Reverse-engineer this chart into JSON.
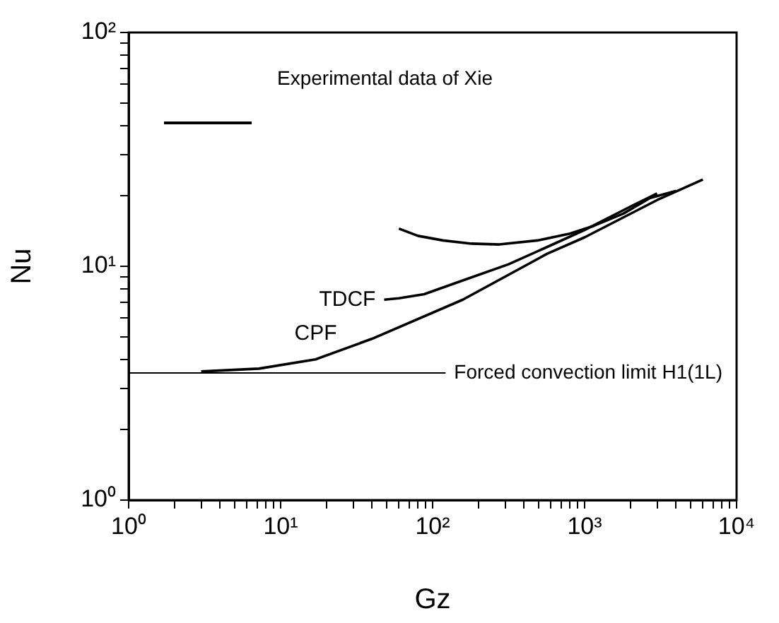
{
  "chart_data": {
    "type": "line",
    "xlabel": "Gz",
    "ylabel": "Nu",
    "log": "xy",
    "annotations": [
      "Experimental data of Xie"
    ],
    "grid": false,
    "marker": "none",
    "line_style": "solid",
    "xlim": [
      1,
      10000
    ],
    "ylim": [
      1,
      100
    ],
    "xticks": [
      {
        "value": 1,
        "label": "10⁰"
      },
      {
        "value": 2,
        "label": null
      },
      {
        "value": 3,
        "label": null
      },
      {
        "value": 4,
        "label": null
      },
      {
        "value": 5,
        "label": null
      },
      {
        "value": 6,
        "label": null
      },
      {
        "value": 7,
        "label": null
      },
      {
        "value": 8,
        "label": null
      },
      {
        "value": 9,
        "label": null
      },
      {
        "value": 10,
        "label": "10¹"
      },
      {
        "value": 20,
        "label": null
      },
      {
        "value": 30,
        "label": null
      },
      {
        "value": 40,
        "label": null
      },
      {
        "value": 50,
        "label": null
      },
      {
        "value": 60,
        "label": null
      },
      {
        "value": 70,
        "label": null
      },
      {
        "value": 80,
        "label": null
      },
      {
        "value": 90,
        "label": null
      },
      {
        "value": 100,
        "label": "10²"
      },
      {
        "value": 200,
        "label": null
      },
      {
        "value": 300,
        "label": null
      },
      {
        "value": 400,
        "label": null
      },
      {
        "value": 500,
        "label": null
      },
      {
        "value": 600,
        "label": null
      },
      {
        "value": 700,
        "label": null
      },
      {
        "value": 800,
        "label": null
      },
      {
        "value": 900,
        "label": null
      },
      {
        "value": 1000,
        "label": "10³"
      },
      {
        "value": 2000,
        "label": null
      },
      {
        "value": 3000,
        "label": null
      },
      {
        "value": 4000,
        "label": null
      },
      {
        "value": 5000,
        "label": null
      },
      {
        "value": 6000,
        "label": null
      },
      {
        "value": 7000,
        "label": null
      },
      {
        "value": 8000,
        "label": null
      },
      {
        "value": 9000,
        "label": null
      },
      {
        "value": 10000,
        "label": "10⁴"
      }
    ],
    "yticks": [
      {
        "value": 1,
        "label": "10⁰"
      },
      {
        "value": 2,
        "label": null
      },
      {
        "value": 3,
        "label": null
      },
      {
        "value": 4,
        "label": null
      },
      {
        "value": 5,
        "label": null
      },
      {
        "value": 6,
        "label": null
      },
      {
        "value": 7,
        "label": null
      },
      {
        "value": 8,
        "label": null
      },
      {
        "value": 9,
        "label": null
      },
      {
        "value": 10,
        "label": "10¹"
      },
      {
        "value": 20,
        "label": null
      },
      {
        "value": 30,
        "label": null
      },
      {
        "value": 40,
        "label": null
      },
      {
        "value": 50,
        "label": null
      },
      {
        "value": 60,
        "label": null
      },
      {
        "value": 70,
        "label": null
      },
      {
        "value": 80,
        "label": null
      },
      {
        "value": 90,
        "label": null
      },
      {
        "value": 100,
        "label": "10²"
      }
    ],
    "series": [
      {
        "color": "#000000",
        "x": [
          60,
          80,
          117,
          180,
          275,
          490,
          800,
          1150,
          1800,
          2700,
          4000
        ],
        "values": [
          14.5,
          13.5,
          12.9,
          12.5,
          12.4,
          12.9,
          13.8,
          14.9,
          16.8,
          19.6,
          21
        ]
      },
      {
        "name": "TDCF",
        "color": "#000000",
        "x": [
          48,
          60,
          88,
          150,
          316,
          600,
          1000,
          2000,
          3000
        ],
        "values": [
          7.2,
          7.3,
          7.6,
          8.6,
          10.2,
          12.3,
          14.3,
          18,
          20.5
        ]
      },
      {
        "name": "CPF",
        "color": "#000000",
        "x": [
          3,
          7.2,
          17,
          40,
          158,
          565,
          1000,
          3000,
          6000
        ],
        "values": [
          3.55,
          3.65,
          4,
          4.9,
          7.2,
          11.3,
          13.3,
          19.2,
          23.5
        ]
      }
    ],
    "ref_lines": [
      {
        "axis": "y",
        "value": 3.5,
        "label": "Forced convection limit H1(1L)"
      }
    ]
  }
}
